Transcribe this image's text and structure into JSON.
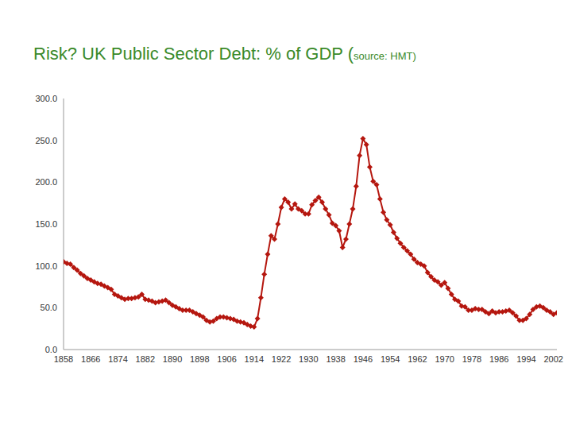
{
  "chart_data": {
    "type": "line",
    "title": "Risk? UK Public Sector Debt: % of GDP (",
    "subtitle": "source: HMT)",
    "x": [
      1858,
      1859,
      1860,
      1861,
      1862,
      1863,
      1864,
      1865,
      1866,
      1867,
      1868,
      1869,
      1870,
      1871,
      1872,
      1873,
      1874,
      1875,
      1876,
      1877,
      1878,
      1879,
      1880,
      1881,
      1882,
      1883,
      1884,
      1885,
      1886,
      1887,
      1888,
      1889,
      1890,
      1891,
      1892,
      1893,
      1894,
      1895,
      1896,
      1897,
      1898,
      1899,
      1900,
      1901,
      1902,
      1903,
      1904,
      1905,
      1906,
      1907,
      1908,
      1909,
      1910,
      1911,
      1912,
      1913,
      1914,
      1915,
      1916,
      1917,
      1918,
      1919,
      1920,
      1921,
      1922,
      1923,
      1924,
      1925,
      1926,
      1927,
      1928,
      1929,
      1930,
      1931,
      1932,
      1933,
      1934,
      1935,
      1936,
      1937,
      1938,
      1939,
      1940,
      1941,
      1942,
      1943,
      1944,
      1945,
      1946,
      1947,
      1948,
      1949,
      1950,
      1951,
      1952,
      1953,
      1954,
      1955,
      1956,
      1957,
      1958,
      1959,
      1960,
      1961,
      1962,
      1963,
      1964,
      1965,
      1966,
      1967,
      1968,
      1969,
      1970,
      1971,
      1972,
      1973,
      1974,
      1975,
      1976,
      1977,
      1978,
      1979,
      1980,
      1981,
      1982,
      1983,
      1984,
      1985,
      1986,
      1987,
      1988,
      1989,
      1990,
      1991,
      1992,
      1993,
      1994,
      1995,
      1996,
      1997,
      1998,
      1999,
      2000,
      2001,
      2002,
      2003
    ],
    "values": [
      105,
      103,
      102,
      98,
      95,
      91,
      88,
      85,
      83,
      81,
      79,
      78,
      76,
      74,
      72,
      66,
      64,
      62,
      60,
      61,
      61,
      62,
      63,
      66,
      60,
      59,
      58,
      56,
      57,
      58,
      59,
      56,
      53,
      51,
      49,
      47,
      47,
      47,
      45,
      43,
      41,
      39,
      35,
      33,
      34,
      37,
      39,
      39,
      38,
      37,
      36,
      34,
      33,
      32,
      30,
      28,
      27,
      37,
      62,
      90,
      114,
      136,
      132,
      150,
      170,
      180,
      176,
      168,
      174,
      168,
      166,
      162,
      162,
      173,
      178,
      182,
      176,
      168,
      161,
      151,
      148,
      142,
      122,
      132,
      150,
      168,
      195,
      232,
      252,
      245,
      218,
      201,
      197,
      180,
      164,
      155,
      149,
      140,
      133,
      127,
      122,
      118,
      114,
      108,
      104,
      102,
      100,
      92,
      87,
      83,
      81,
      77,
      80,
      73,
      66,
      60,
      58,
      52,
      51,
      47,
      47,
      49,
      48,
      48,
      45,
      43,
      46,
      44,
      45,
      45,
      46,
      47,
      44,
      40,
      35,
      35,
      37,
      42,
      48,
      51,
      52,
      50,
      47,
      45,
      42,
      44
    ],
    "color": "#b5170f",
    "marker": "diamond",
    "xlim": [
      1858,
      2003
    ],
    "xticks": [
      1858,
      1866,
      1874,
      1882,
      1890,
      1898,
      1906,
      1914,
      1922,
      1930,
      1938,
      1946,
      1954,
      1962,
      1970,
      1978,
      1986,
      1994,
      2002
    ],
    "ylim": [
      0,
      300
    ],
    "yticks": [
      {
        "value": 0,
        "label": "0.0"
      },
      {
        "value": 50,
        "label": "50.0"
      },
      {
        "value": 100,
        "label": "100.0"
      },
      {
        "value": 150,
        "label": "150.0"
      },
      {
        "value": 200,
        "label": "200.0"
      },
      {
        "value": 250,
        "label": "250.0"
      },
      {
        "value": 300,
        "label": "300.0"
      }
    ],
    "grid": false
  }
}
